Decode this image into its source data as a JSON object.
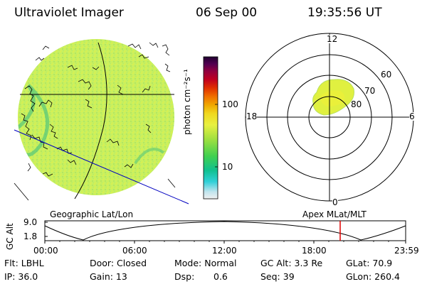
{
  "header": {
    "title": "Ultraviolet Imager",
    "date": "06 Sep 00",
    "time": "19:35:56 UT"
  },
  "colorbar": {
    "unit_label": "photon cm⁻²s⁻¹",
    "tick_100": "100",
    "tick_10": "10",
    "colors": [
      "#e8e8e8",
      "#c8e8f0",
      "#40d0d0",
      "#00b8a0",
      "#30d060",
      "#90e040",
      "#e0f040",
      "#f0e020",
      "#f0b000",
      "#f08000",
      "#e04000",
      "#c00020",
      "#900040",
      "#500050",
      "#200030"
    ]
  },
  "left_panel": {
    "caption": "Geographic Lat/Lon",
    "disk_color": "#c8f060"
  },
  "right_panel": {
    "caption": "Apex MLat/MLT",
    "mlt_12": "12",
    "mlt_18": "18",
    "mlt_6": "6",
    "mlt_0": "0",
    "lat_60": "60",
    "lat_70": "70",
    "lat_80": "80"
  },
  "altitude_plot": {
    "ylabel": "GC Alt",
    "ytick_top": "9.0",
    "ytick_bottom": "1.8",
    "xticks": [
      "00:00",
      "06:00",
      "12:00",
      "18:00",
      "23:59"
    ],
    "marker_color": "#e00000"
  },
  "status": {
    "flt": "Flt: LBHL",
    "door": "Door: Closed",
    "mode": "Mode: Normal",
    "gc_alt": "GC Alt: 3.3 Re",
    "glat": "GLat:  70.9",
    "ip": "IP: 36.0",
    "gain": "Gain: 13",
    "dsp_label": "Dsp:",
    "dsp_value": "0.6",
    "seq": "Seq: 39",
    "glon": "GLon: 260.4"
  }
}
